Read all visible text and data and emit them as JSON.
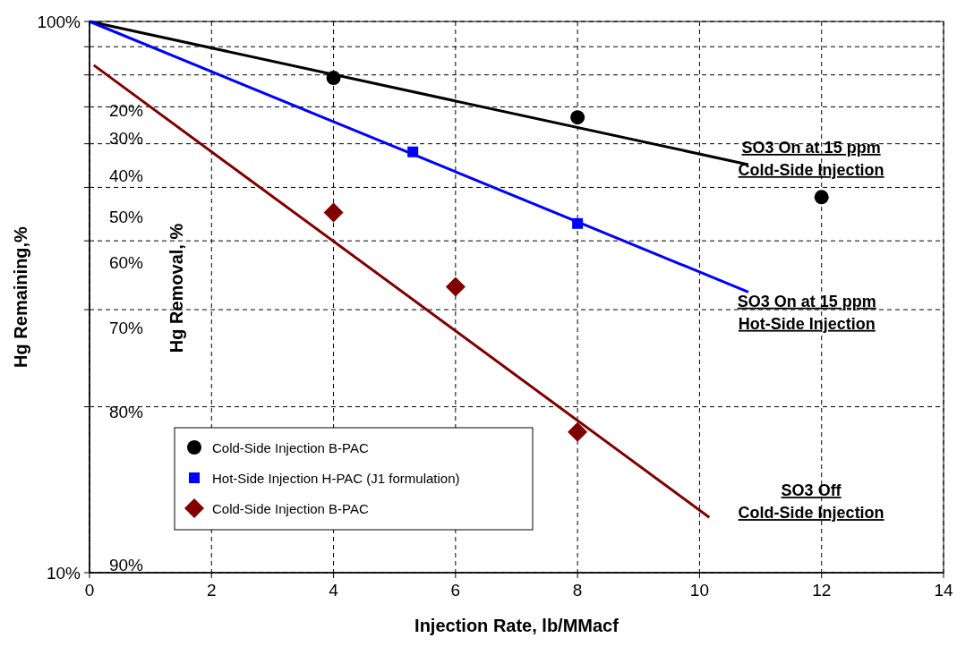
{
  "chart_data": {
    "type": "scatter",
    "xlabel": "Injection Rate, lb/MMacf",
    "ylabel": "Hg Remaining,%",
    "y2label": "Hg  Removal, %",
    "log": "y",
    "grid": true,
    "legend": "bottom left",
    "xlim": [
      0,
      14
    ],
    "xticks": [
      0,
      2,
      4,
      6,
      8,
      10,
      12,
      14
    ],
    "ylim": [
      10,
      100
    ],
    "yticks": [
      {
        "value": 10,
        "label": "10%"
      },
      {
        "value": 20,
        "label": null
      },
      {
        "value": 30,
        "label": null
      },
      {
        "value": 40,
        "label": null
      },
      {
        "value": 50,
        "label": null
      },
      {
        "value": 60,
        "label": null
      },
      {
        "value": 70,
        "label": null
      },
      {
        "value": 80,
        "label": null
      },
      {
        "value": 90,
        "label": null
      },
      {
        "value": 100,
        "label": "100%"
      }
    ],
    "series": [
      {
        "name": "Cold-Side Injection B-PAC",
        "marker": "circle",
        "color": "#000000",
        "x": [
          4,
          8,
          12
        ],
        "values": [
          79,
          67,
          48
        ]
      },
      {
        "name": "Hot-Side Injection  H-PAC (J1 formulation)",
        "marker": "square",
        "color": "#0000ff",
        "x": [
          5.3,
          8
        ],
        "values": [
          58,
          43
        ]
      },
      {
        "name": "Cold-Side Injection B-PAC",
        "marker": "diamond",
        "color": "#800000",
        "x": [
          4,
          6,
          8
        ],
        "values": [
          45,
          33,
          18
        ]
      },
      {
        "type": "line",
        "marker": "none",
        "color": "#000000",
        "x": [
          0,
          10.8
        ],
        "values": [
          100,
          55
        ]
      },
      {
        "type": "line",
        "marker": "none",
        "color": "#0000ff",
        "x": [
          0,
          10.8
        ],
        "values": [
          100,
          32.3
        ]
      },
      {
        "type": "line",
        "marker": "none",
        "color": "#800000",
        "x": [
          0.07,
          10.16
        ],
        "values": [
          83.3,
          12.6
        ]
      }
    ],
    "annotations": [
      "SO3 On at 15 ppm\nCold-Side Injection",
      "SO3 On at 15 ppm\nHot-Side Injection",
      "SO3 Off\nCold-Side Injection",
      "20%",
      "30%",
      "40%",
      "50%",
      "60%",
      "70%",
      "80%",
      "90%"
    ]
  }
}
